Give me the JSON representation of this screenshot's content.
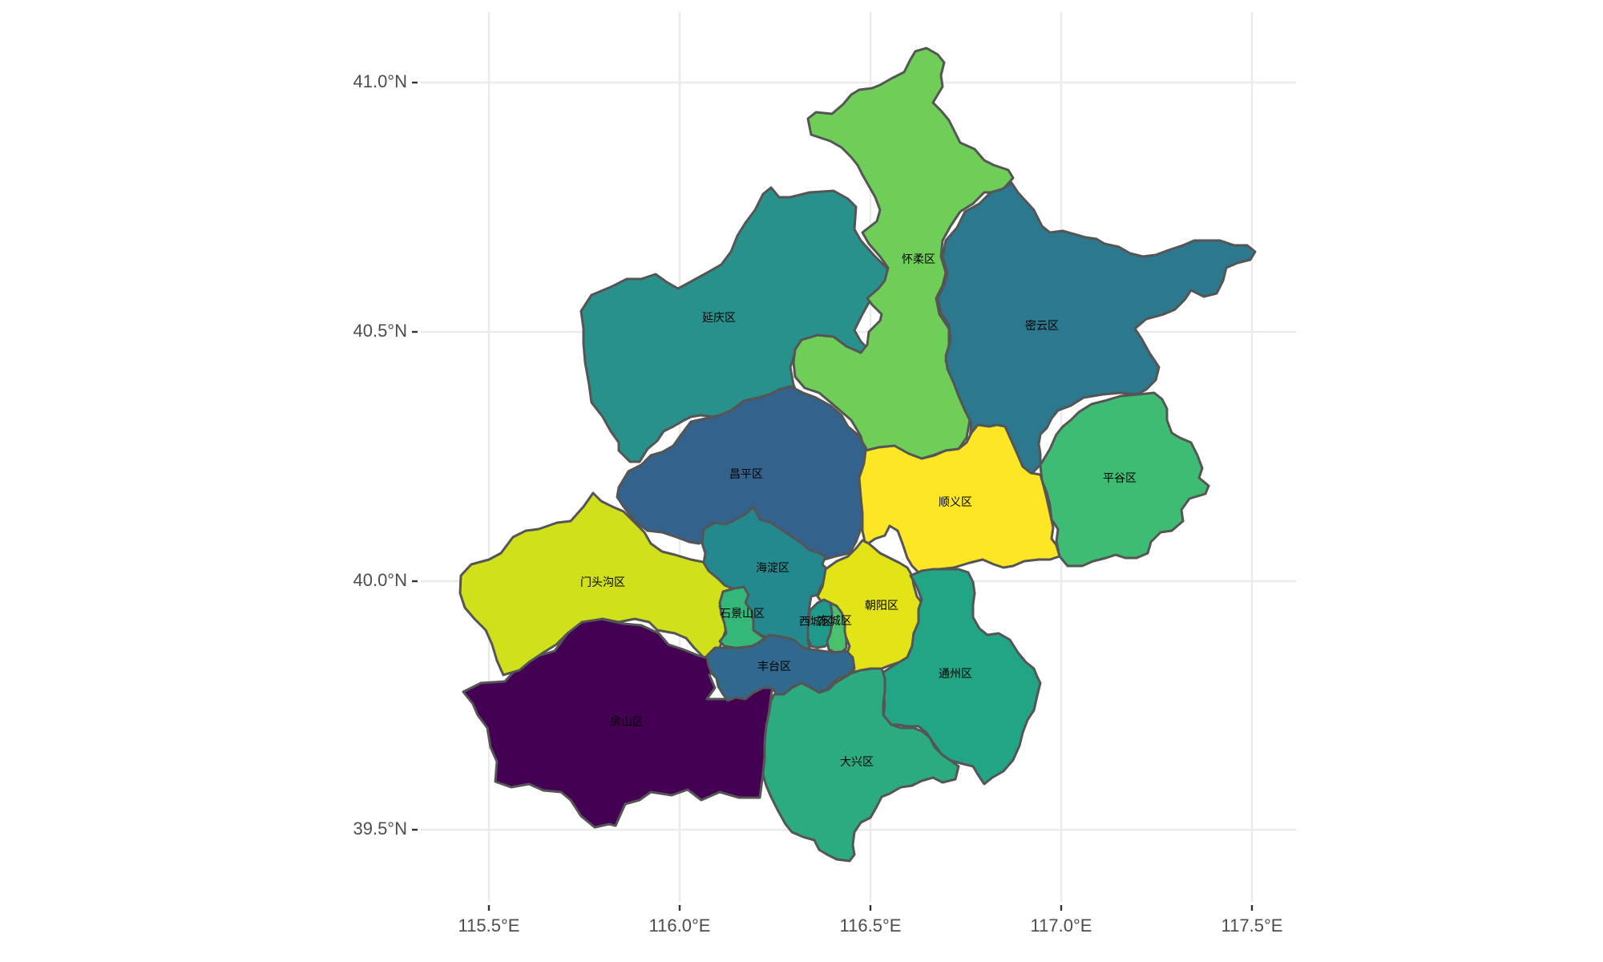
{
  "map": {
    "x_axis_labels": [
      "115.5°E",
      "116.0°E",
      "116.5°E",
      "117.0°E",
      "117.5°E"
    ],
    "y_axis_labels": [
      "41.0°N",
      "40.5°N",
      "40.0°N",
      "39.5°N"
    ],
    "x_ticks_lon": [
      115.5,
      116.0,
      116.5,
      117.0,
      117.5
    ],
    "y_ticks_lat": [
      41.0,
      40.5,
      40.0,
      39.5
    ],
    "legend": "none"
  },
  "districts": [
    {
      "id": "huairou",
      "name": "怀柔区",
      "color": "#6ECE58"
    },
    {
      "id": "yanqing",
      "name": "延庆区",
      "color": "#29918C"
    },
    {
      "id": "miyun",
      "name": "密云区",
      "color": "#2C788E"
    },
    {
      "id": "changping",
      "name": "昌平区",
      "color": "#33638D"
    },
    {
      "id": "shunyi",
      "name": "顺义区",
      "color": "#FDE725"
    },
    {
      "id": "pinggu",
      "name": "平谷区",
      "color": "#3FBC73"
    },
    {
      "id": "mentougou",
      "name": "门头沟区",
      "color": "#D0E11C"
    },
    {
      "id": "haidian",
      "name": "海淀区",
      "color": "#23898E"
    },
    {
      "id": "shijingshan",
      "name": "石景山区",
      "color": "#35B779"
    },
    {
      "id": "chaoyang",
      "name": "朝阳区",
      "color": "#E2E418"
    },
    {
      "id": "xicheng",
      "name": "西城区",
      "color": "#1F9A8A"
    },
    {
      "id": "dongcheng",
      "name": "东城区",
      "color": "#4AC16D"
    },
    {
      "id": "fengtai",
      "name": "丰台区",
      "color": "#31688E"
    },
    {
      "id": "tongzhou",
      "name": "通州区",
      "color": "#21A585"
    },
    {
      "id": "fangshan",
      "name": "房山区",
      "color": "#440154"
    },
    {
      "id": "daxing",
      "name": "大兴区",
      "color": "#2BAB7F"
    }
  ]
}
